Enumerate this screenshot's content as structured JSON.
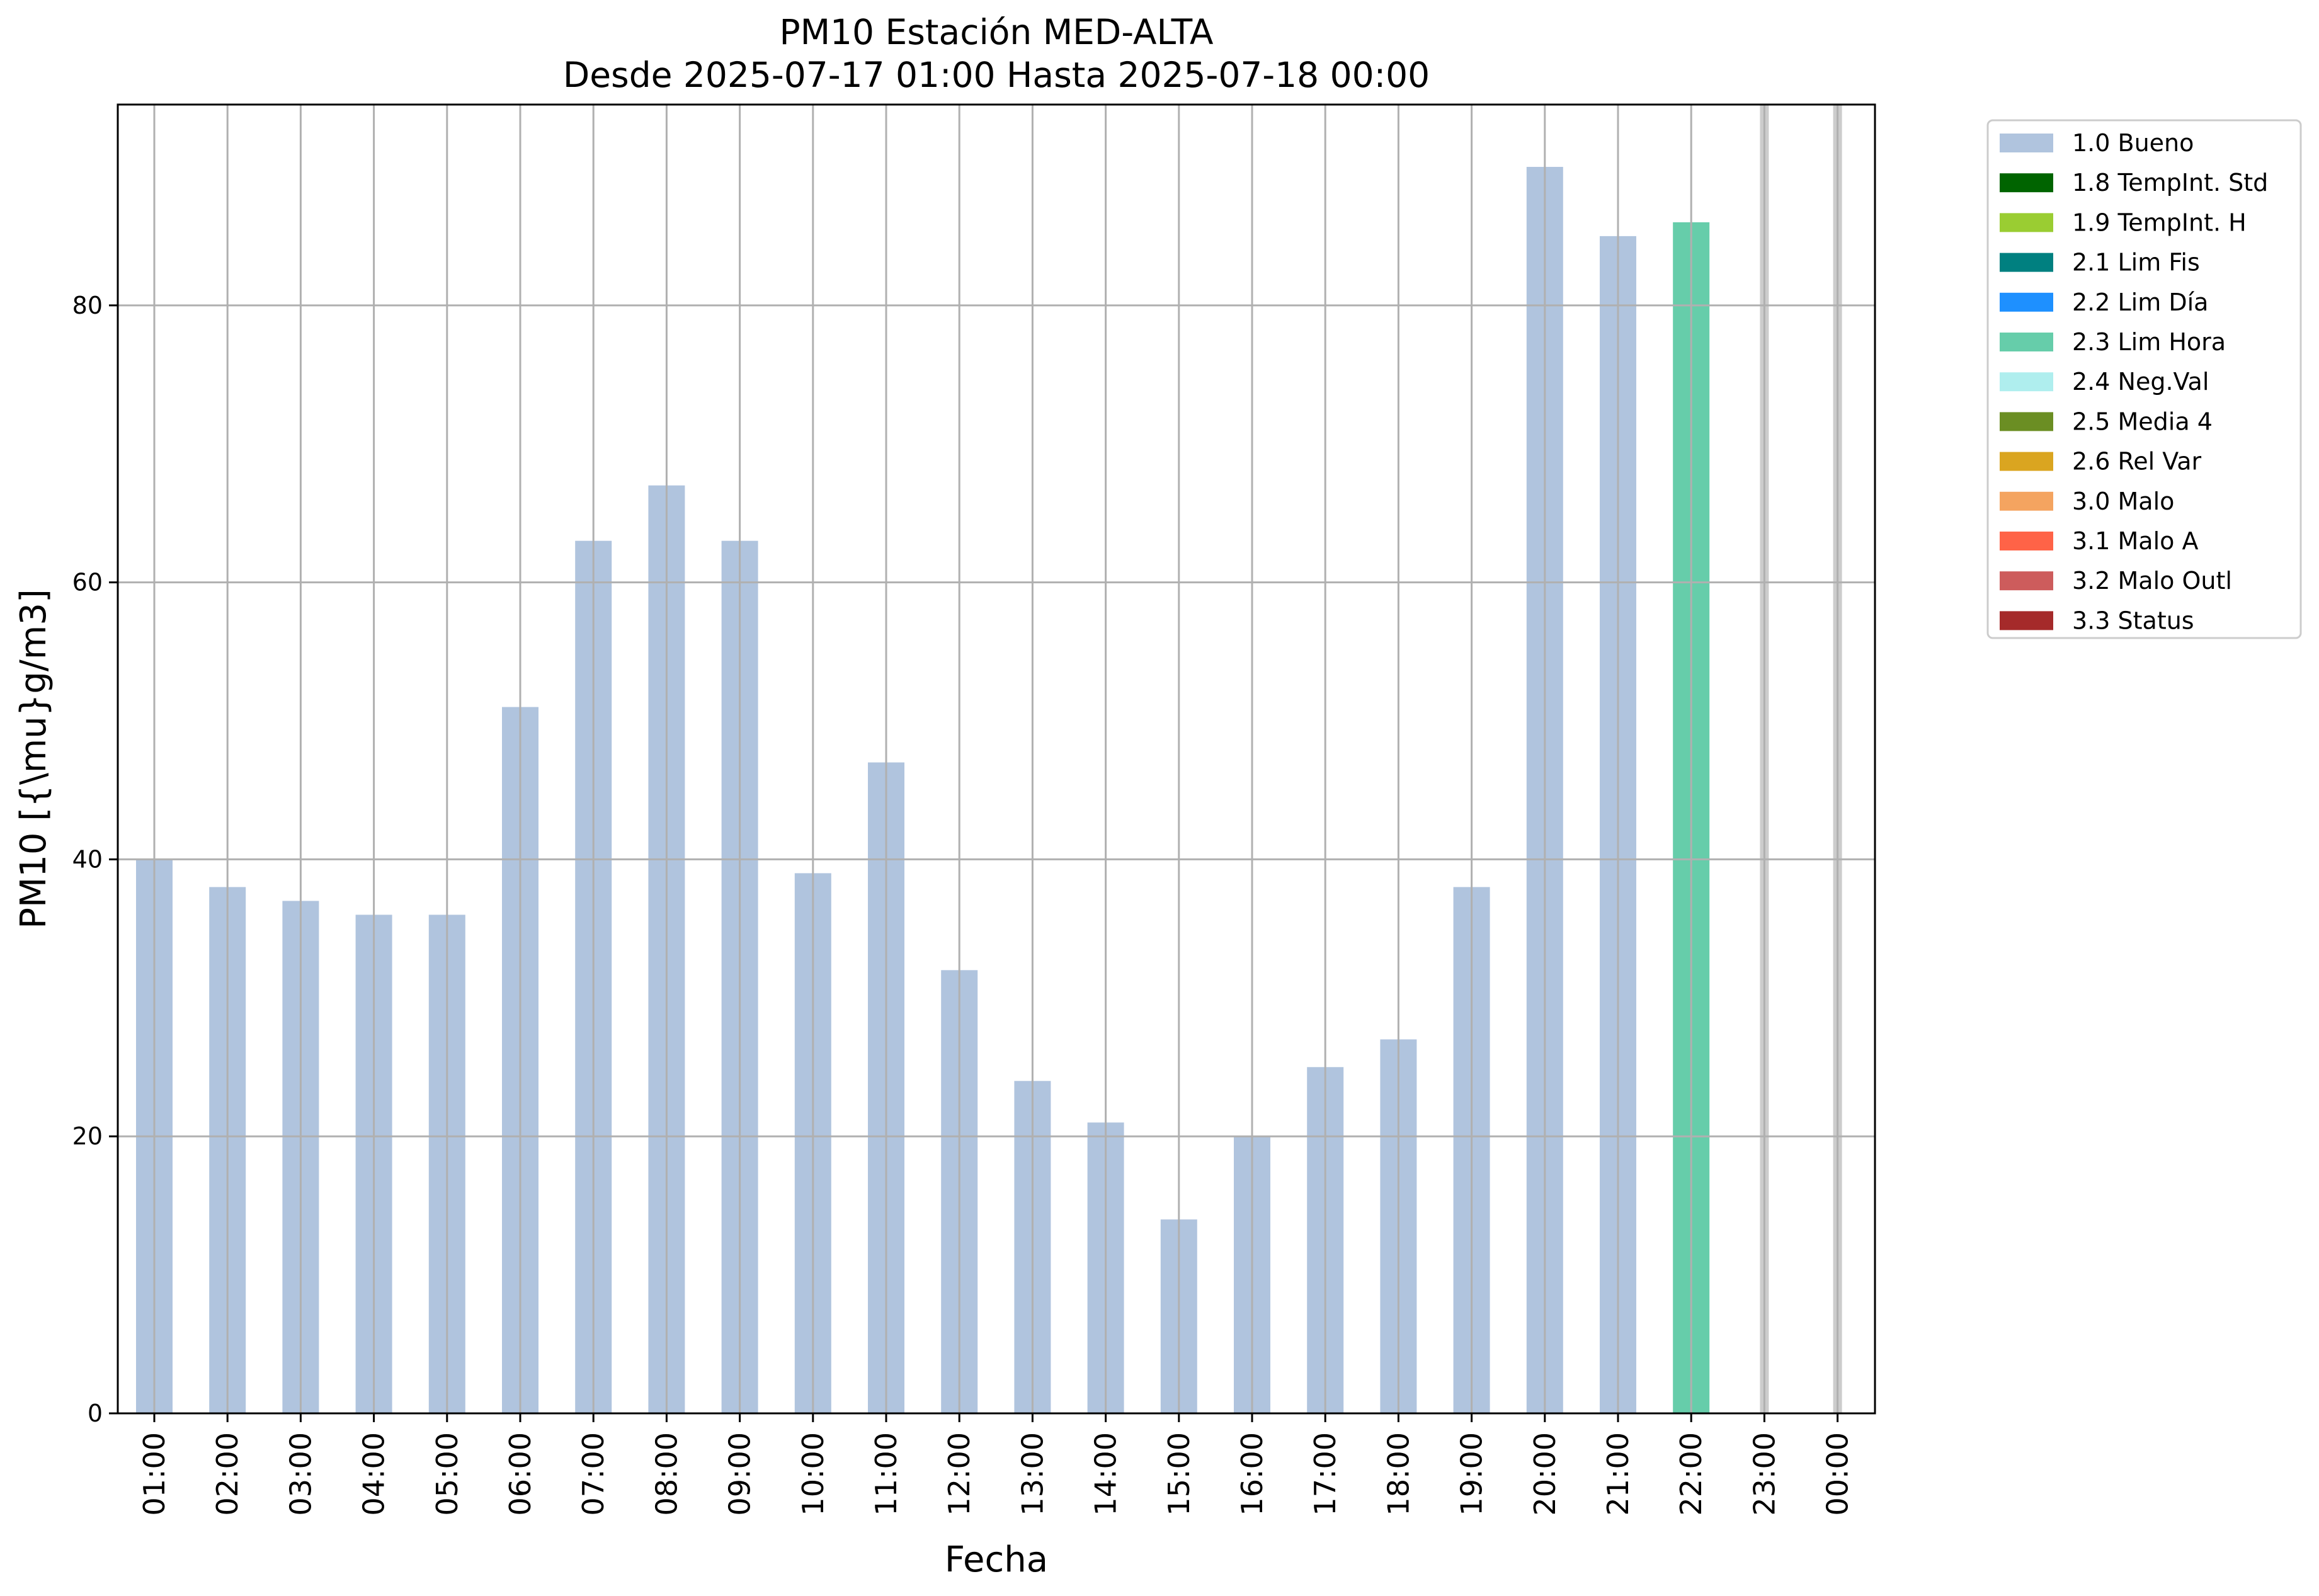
{
  "chart_data": {
    "type": "bar",
    "title": "PM10 Estación MED-ALTA",
    "subtitle": "Desde 2025-07-17 01:00 Hasta 2025-07-18 00:00",
    "xlabel": "Fecha",
    "ylabel": "PM10 [{\\mu}g/m3]",
    "ylim": [
      0,
      94.5
    ],
    "yticks": [
      0,
      20,
      40,
      60,
      80
    ],
    "grid": true,
    "legend_position": "outside-top-right",
    "categories": [
      "01:00",
      "02:00",
      "03:00",
      "04:00",
      "05:00",
      "06:00",
      "07:00",
      "08:00",
      "09:00",
      "10:00",
      "11:00",
      "12:00",
      "13:00",
      "14:00",
      "15:00",
      "16:00",
      "17:00",
      "18:00",
      "19:00",
      "20:00",
      "21:00",
      "22:00",
      "23:00",
      "00:00"
    ],
    "values": [
      40,
      38,
      37,
      36,
      36,
      51,
      63,
      67,
      63,
      39,
      47,
      32,
      24,
      21,
      14,
      20,
      25,
      27,
      38,
      90,
      85,
      86,
      null,
      null
    ],
    "bar_flags": [
      "1.0 Bueno",
      "1.0 Bueno",
      "1.0 Bueno",
      "1.0 Bueno",
      "1.0 Bueno",
      "1.0 Bueno",
      "1.0 Bueno",
      "1.0 Bueno",
      "1.0 Bueno",
      "1.0 Bueno",
      "1.0 Bueno",
      "1.0 Bueno",
      "1.0 Bueno",
      "1.0 Bueno",
      "1.0 Bueno",
      "1.0 Bueno",
      "1.0 Bueno",
      "1.0 Bueno",
      "1.0 Bueno",
      "1.0 Bueno",
      "1.0 Bueno",
      "2.3 Lim Hora",
      null,
      null
    ],
    "missing_marker_color": "#cccccc",
    "legend": [
      {
        "label": "1.0 Bueno",
        "color": "#b0c4de"
      },
      {
        "label": "1.8 TempInt. Std",
        "color": "#006400"
      },
      {
        "label": "1.9 TempInt. H",
        "color": "#9acd32"
      },
      {
        "label": "2.1 Lim Fis",
        "color": "#008080"
      },
      {
        "label": "2.2 Lim Día",
        "color": "#1e90ff"
      },
      {
        "label": "2.3 Lim Hora",
        "color": "#66cdaa"
      },
      {
        "label": "2.4 Neg.Val",
        "color": "#afeeee"
      },
      {
        "label": "2.5 Media 4",
        "color": "#6b8e23"
      },
      {
        "label": "2.6 Rel Var",
        "color": "#daa520"
      },
      {
        "label": "3.0 Malo",
        "color": "#f4a460"
      },
      {
        "label": "3.1 Malo A",
        "color": "#ff6347"
      },
      {
        "label": "3.2 Malo Outl",
        "color": "#cd5c5c"
      },
      {
        "label": "3.3 Status",
        "color": "#a52a2a"
      }
    ]
  }
}
